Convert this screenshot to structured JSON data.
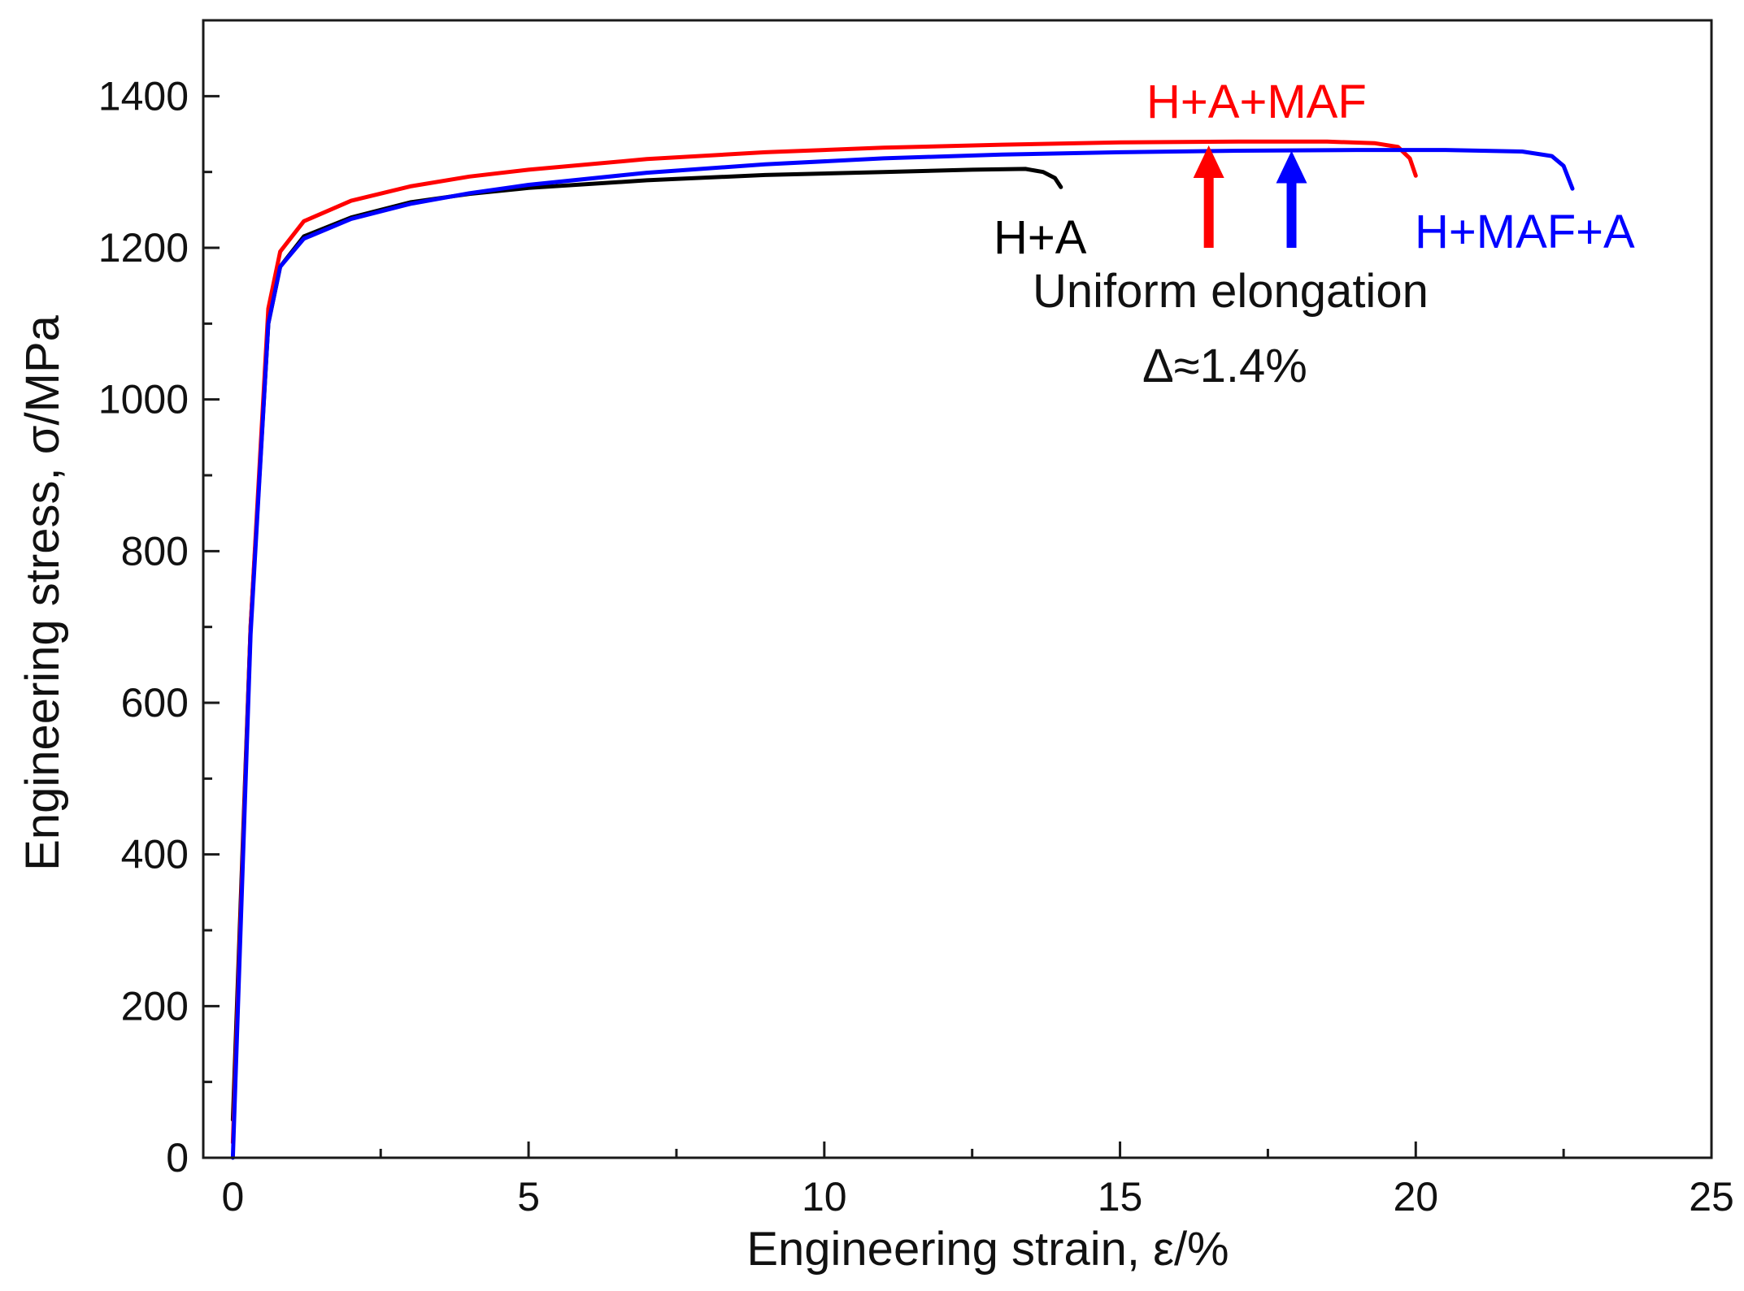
{
  "chart_data": {
    "type": "line",
    "title": "",
    "xlabel": "Engineering strain, ε/%",
    "ylabel": "Engineering stress, σ/MPa",
    "xlim": [
      -0.5,
      25
    ],
    "ylim": [
      0,
      1500
    ],
    "x_ticks": [
      0,
      5,
      10,
      15,
      20,
      25
    ],
    "y_ticks": [
      0,
      200,
      400,
      600,
      800,
      1000,
      1200,
      1400
    ],
    "grid": false,
    "series": [
      {
        "name": "H+A",
        "color": "#000000",
        "points": [
          [
            0,
            50
          ],
          [
            0.3,
            700
          ],
          [
            0.6,
            1100
          ],
          [
            0.8,
            1175
          ],
          [
            1.2,
            1215
          ],
          [
            2,
            1240
          ],
          [
            3,
            1260
          ],
          [
            4,
            1271
          ],
          [
            5,
            1279
          ],
          [
            7,
            1289
          ],
          [
            9,
            1296
          ],
          [
            11,
            1300
          ],
          [
            12.5,
            1303
          ],
          [
            13.4,
            1304
          ],
          [
            13.7,
            1300
          ],
          [
            13.9,
            1292
          ],
          [
            14,
            1280
          ]
        ]
      },
      {
        "name": "H+A+MAF",
        "color": "#ff0000",
        "points": [
          [
            0,
            20
          ],
          [
            0.3,
            700
          ],
          [
            0.6,
            1120
          ],
          [
            0.8,
            1195
          ],
          [
            1.2,
            1235
          ],
          [
            2,
            1262
          ],
          [
            3,
            1281
          ],
          [
            4,
            1294
          ],
          [
            5,
            1303
          ],
          [
            7,
            1317
          ],
          [
            9,
            1326
          ],
          [
            11,
            1332
          ],
          [
            13,
            1336
          ],
          [
            15,
            1339
          ],
          [
            17,
            1340
          ],
          [
            18.5,
            1340
          ],
          [
            19.3,
            1338
          ],
          [
            19.7,
            1333
          ],
          [
            19.9,
            1318
          ],
          [
            20,
            1295
          ]
        ]
      },
      {
        "name": "H+MAF+A",
        "color": "#0000ff",
        "points": [
          [
            0,
            0
          ],
          [
            0.3,
            690
          ],
          [
            0.6,
            1100
          ],
          [
            0.8,
            1175
          ],
          [
            1.2,
            1212
          ],
          [
            2,
            1238
          ],
          [
            3,
            1258
          ],
          [
            4,
            1272
          ],
          [
            5,
            1283
          ],
          [
            7,
            1299
          ],
          [
            9,
            1310
          ],
          [
            11,
            1318
          ],
          [
            13,
            1323
          ],
          [
            15,
            1326
          ],
          [
            17,
            1328
          ],
          [
            19,
            1329
          ],
          [
            20.5,
            1329
          ],
          [
            21.8,
            1327
          ],
          [
            22.3,
            1321
          ],
          [
            22.5,
            1308
          ],
          [
            22.65,
            1278
          ]
        ]
      }
    ],
    "annotations": {
      "series_labels": [
        "H+A",
        "H+A+MAF",
        "H+MAF+A"
      ],
      "arrows": [
        {
          "color": "#ff0000",
          "x": 16.5,
          "y_from": 1200,
          "y_to": 1335
        },
        {
          "color": "#0000ff",
          "x": 17.9,
          "y_from": 1200,
          "y_to": 1328
        }
      ],
      "uniform_elongation": "Uniform elongation",
      "delta": "Δ≈1.4%"
    }
  }
}
